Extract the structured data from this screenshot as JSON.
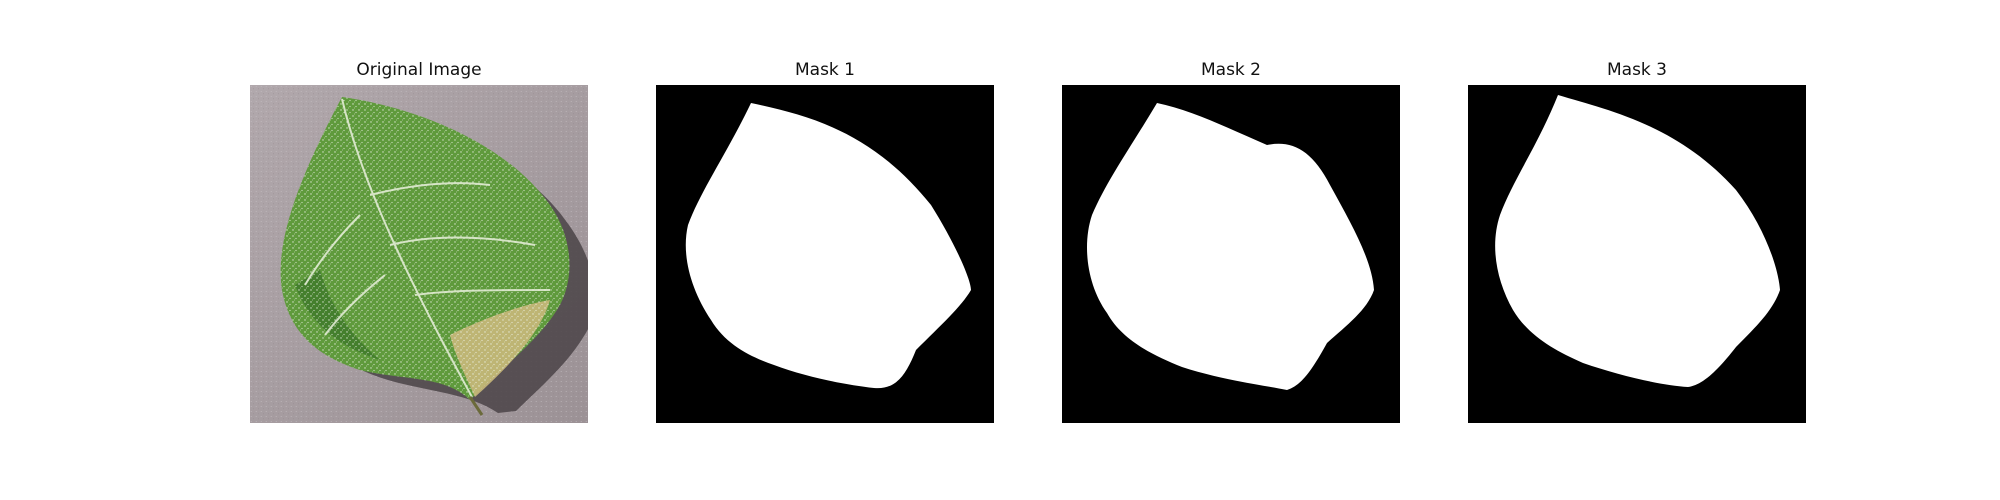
{
  "figure": {
    "panels": [
      {
        "title": "Original Image",
        "kind": "photo",
        "subject": "green-leaf-on-gray-surface"
      },
      {
        "title": "Mask 1",
        "kind": "mask"
      },
      {
        "title": "Mask 2",
        "kind": "mask"
      },
      {
        "title": "Mask 3",
        "kind": "mask"
      }
    ]
  },
  "colors": {
    "background": "#ffffff",
    "mask_background": "#000000",
    "mask_foreground": "#ffffff",
    "surface_gray": "#a89ea2",
    "leaf_green": "#5f9a3c",
    "leaf_light": "#cfe0b8",
    "leaf_tip_tan": "#c9b87a"
  }
}
